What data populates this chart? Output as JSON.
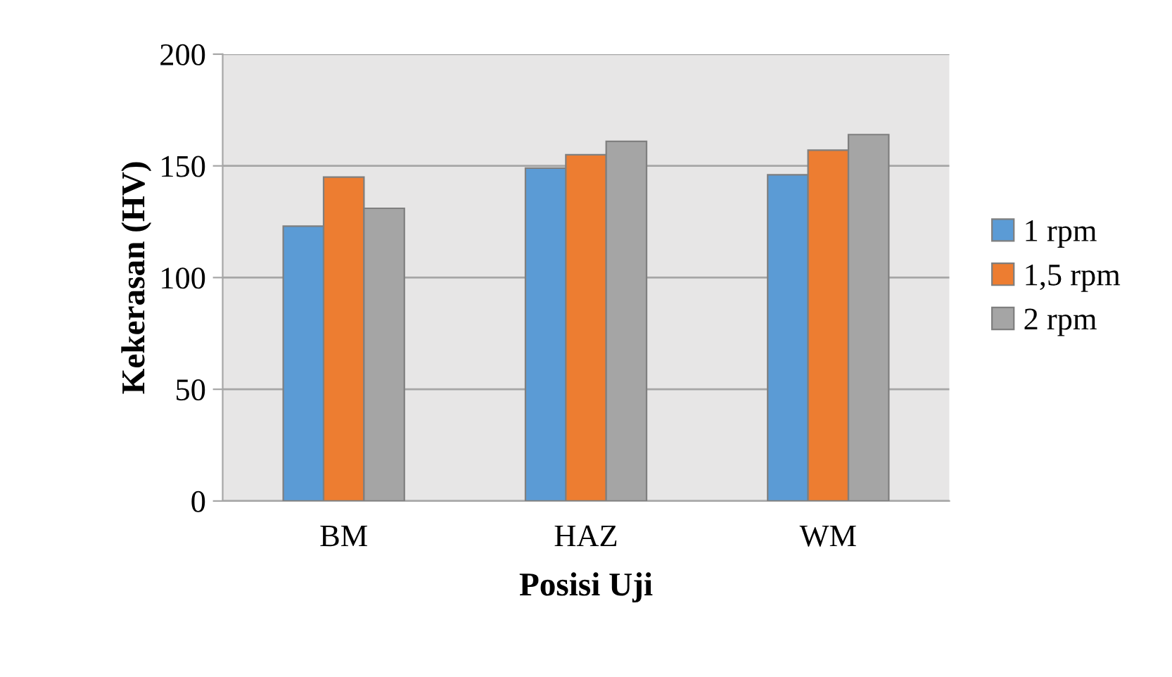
{
  "chart_data": {
    "type": "bar",
    "xlabel": "Posisi Uji",
    "ylabel": "Kekerasan (HV)",
    "categories": [
      "BM",
      "HAZ",
      "WM"
    ],
    "series": [
      {
        "name": "1 rpm",
        "color": "#5b9bd5",
        "values": [
          123,
          149,
          146
        ]
      },
      {
        "name": "1,5 rpm",
        "color": "#ed7d31",
        "values": [
          145,
          155,
          157
        ]
      },
      {
        "name": "2 rpm",
        "color": "#a5a5a5",
        "values": [
          131,
          161,
          164
        ]
      }
    ],
    "ylim": [
      0,
      200
    ],
    "yticks": [
      0,
      50,
      100,
      150,
      200
    ],
    "grid": "y",
    "legend": "right"
  }
}
